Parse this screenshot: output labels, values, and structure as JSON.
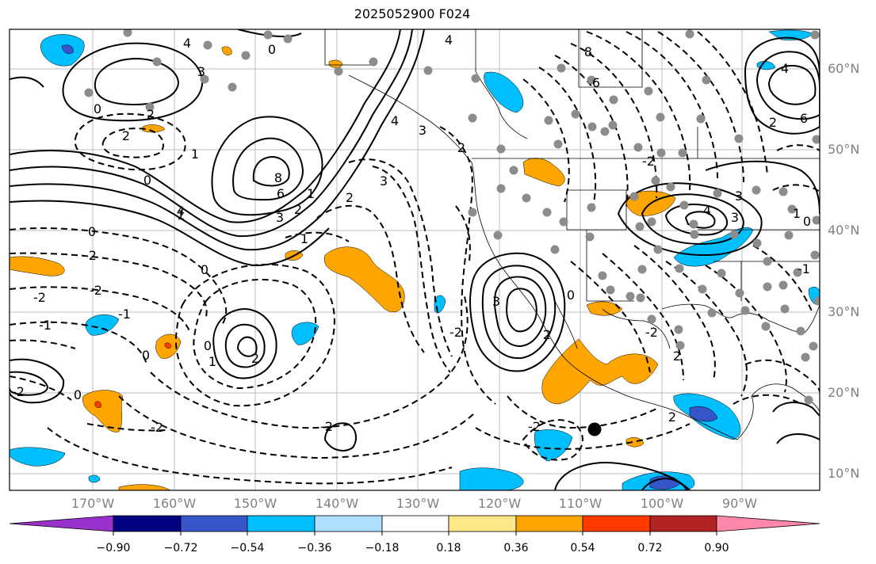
{
  "title": "2025052900 F024",
  "lat_labels": [
    "60°N",
    "50°N",
    "40°N",
    "30°N",
    "20°N",
    "10°N"
  ],
  "lon_labels": [
    "170°W",
    "160°W",
    "150°W",
    "140°W",
    "130°W",
    "120°W",
    "110°W",
    "100°W",
    "90°W"
  ],
  "colorbar": {
    "tick_labels": [
      "−0.90",
      "−0.72",
      "−0.54",
      "−0.36",
      "−0.18",
      "0.18",
      "0.36",
      "0.54",
      "0.72",
      "0.90"
    ],
    "colors": [
      "#9932CC",
      "#000080",
      "#3655C8",
      "#00BFFF",
      "#ADDFFF",
      "#FFFFFF",
      "#FFE88A",
      "#FFA500",
      "#FF3A00",
      "#B22222",
      "#FF88AA"
    ]
  },
  "contour_labels": [
    "4",
    "0",
    "4",
    "3",
    "2",
    "0",
    "0",
    "1",
    "2",
    "0",
    "1",
    "8",
    "6",
    "4",
    "3",
    "2",
    "1",
    "3",
    "2",
    "4",
    "3",
    "2",
    "1",
    "0",
    "-2",
    "-2",
    "-1",
    "0",
    "-1",
    "-2",
    "0",
    "1",
    "2",
    "-2",
    "0",
    "-2",
    "-2",
    "3",
    "2",
    "-2",
    "-2",
    "8",
    "6",
    "-2",
    "3",
    "4",
    "3",
    "1",
    "0",
    "-2",
    "0",
    "-1",
    "2",
    "2",
    "6",
    "4",
    "2"
  ],
  "map_colors": {
    "shade_orange": "#FFA500",
    "shade_blue": "#00BFFF",
    "shade_darkblue": "#3655C8",
    "shade_red": "#FF3A00",
    "obs_dot": "#8C8C8C"
  }
}
